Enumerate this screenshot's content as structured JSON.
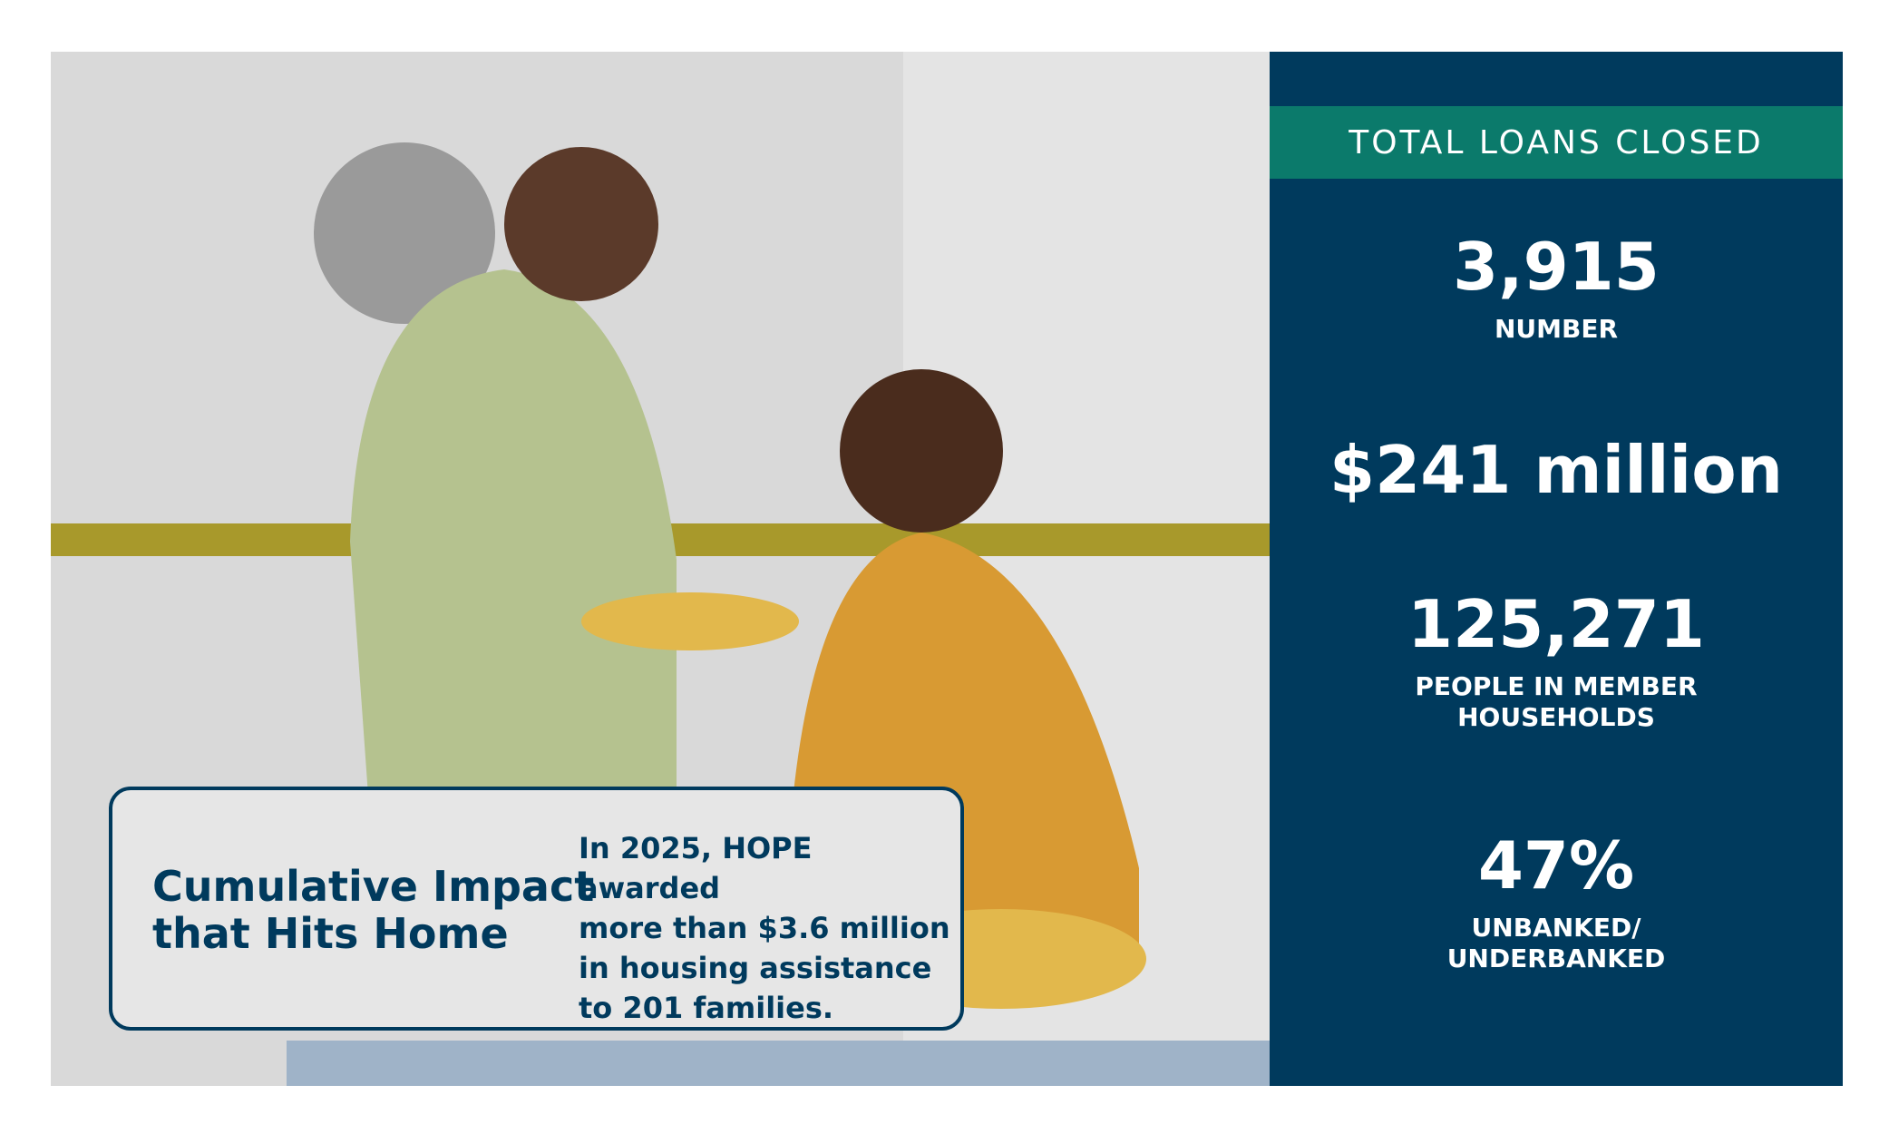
{
  "card": {
    "title": [
      "Cumulative Impact",
      "that Hits Home"
    ],
    "body": [
      "In 2025, HOPE awarded",
      "more than $3.6 million",
      "in housing assistance",
      "to 201 families."
    ]
  },
  "panel": {
    "header": "TOTAL LOANS CLOSED",
    "stats": [
      {
        "value": "3,915",
        "label": [
          "NUMBER"
        ]
      },
      {
        "value": "$241 million",
        "label": []
      },
      {
        "value": "125,271",
        "label": [
          "PEOPLE IN MEMBER",
          "HOUSEHOLDS"
        ]
      },
      {
        "value": "47%",
        "label": [
          "UNBANKED/",
          "UNDERBANKED"
        ]
      }
    ]
  }
}
